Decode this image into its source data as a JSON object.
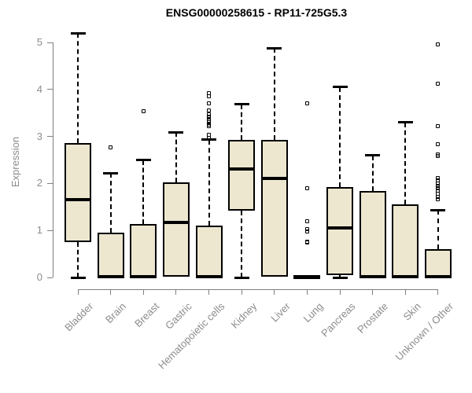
{
  "chart_data": {
    "type": "boxplot",
    "title": "ENSG00000258615 - RP11-725G5.3",
    "ylabel": "Expression",
    "xlabel": "",
    "ylim": [
      0,
      5
    ],
    "yticks": [
      0,
      1,
      2,
      3,
      4,
      5
    ],
    "grid": false,
    "legend": "none",
    "categories": [
      "Bladder",
      "Brain",
      "Breast",
      "Gastric",
      "Hematopoietic cells",
      "Kidney",
      "Liver",
      "Lung",
      "Pancreas",
      "Prostate",
      "Skin",
      "Unknown / Other"
    ],
    "boxes": [
      {
        "category": "Bladder",
        "whisker_low": 0,
        "q1": 0.75,
        "median": 1.66,
        "q3": 2.86,
        "whisker_high": 5.2,
        "outliers": []
      },
      {
        "category": "Brain",
        "whisker_low": 0,
        "q1": 0,
        "median": 0.02,
        "q3": 0.95,
        "whisker_high": 2.22,
        "outliers": [
          2.76
        ]
      },
      {
        "category": "Breast",
        "whisker_low": 0,
        "q1": 0,
        "median": 0.02,
        "q3": 1.13,
        "whisker_high": 2.5,
        "outliers": [
          3.53
        ]
      },
      {
        "category": "Gastric",
        "whisker_low": 0.02,
        "q1": 0.02,
        "median": 1.17,
        "q3": 2.02,
        "whisker_high": 3.09,
        "outliers": []
      },
      {
        "category": "Hematopoietic cells",
        "whisker_low": 0,
        "q1": 0,
        "median": 0.02,
        "q3": 1.1,
        "whisker_high": 2.93,
        "outliers": [
          3.92,
          3.85,
          3.7,
          3.56,
          3.47,
          3.42,
          3.37,
          3.33,
          3.3,
          3.26,
          3.22,
          3.03,
          2.97
        ]
      },
      {
        "category": "Kidney",
        "whisker_low": 0,
        "q1": 1.42,
        "median": 2.31,
        "q3": 2.93,
        "whisker_high": 3.68,
        "outliers": []
      },
      {
        "category": "Liver",
        "whisker_low": 0.02,
        "q1": 0.02,
        "median": 2.1,
        "q3": 2.93,
        "whisker_high": 4.88,
        "outliers": []
      },
      {
        "category": "Lung",
        "whisker_low": 0,
        "q1": 0,
        "median": 0.02,
        "q3": 0.04,
        "whisker_high": 0.04,
        "outliers": [
          3.7,
          1.9,
          1.2,
          1.03,
          0.98,
          0.76,
          0.74
        ]
      },
      {
        "category": "Pancreas",
        "whisker_low": 0,
        "q1": 0.05,
        "median": 1.05,
        "q3": 1.93,
        "whisker_high": 4.05,
        "outliers": []
      },
      {
        "category": "Prostate",
        "whisker_low": 0,
        "q1": 0,
        "median": 0.02,
        "q3": 1.84,
        "whisker_high": 2.6,
        "outliers": []
      },
      {
        "category": "Skin",
        "whisker_low": 0,
        "q1": 0,
        "median": 0.02,
        "q3": 1.56,
        "whisker_high": 3.3,
        "outliers": []
      },
      {
        "category": "Unknown / Other",
        "whisker_low": 0,
        "q1": 0,
        "median": 0.02,
        "q3": 0.6,
        "whisker_high": 1.43,
        "outliers": [
          4.95,
          4.12,
          3.22,
          2.84,
          2.62,
          2.58,
          2.12,
          2.06,
          2.0,
          1.95,
          1.9,
          1.84,
          1.78,
          1.72,
          1.66
        ]
      }
    ]
  },
  "colors": {
    "background": "#FFFFFF",
    "box_fill": "#EDE7D0",
    "box_border": "#000000",
    "median": "#000000",
    "whisker": "#000000",
    "axis": "#808080",
    "tick_label": "#8C8C8C",
    "title": "#000000"
  }
}
